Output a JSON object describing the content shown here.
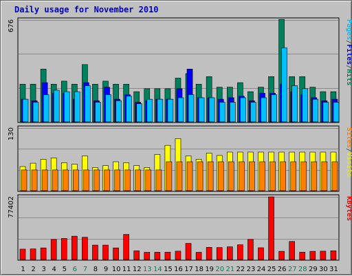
{
  "chart_data": {
    "title": "Daily usage for November 2010",
    "type": "bar",
    "categories": [
      "1",
      "2",
      "3",
      "4",
      "5",
      "6",
      "7",
      "8",
      "9",
      "10",
      "11",
      "12",
      "13",
      "14",
      "15",
      "16",
      "17",
      "18",
      "19",
      "20",
      "21",
      "22",
      "23",
      "24",
      "25",
      "26",
      "27",
      "28",
      "29",
      "30",
      "31"
    ],
    "weekend_days": [
      "6",
      "7",
      "13",
      "14",
      "20",
      "21",
      "27",
      "28"
    ],
    "panels": [
      {
        "id": "hits",
        "ymax_label": "676",
        "ymax": 676,
        "legend": [
          {
            "text": "Pages",
            "color": "#00c0ff"
          },
          {
            "text": "/",
            "color": "#505050"
          },
          {
            "text": "Files",
            "color": "#0000ff"
          },
          {
            "text": "/",
            "color": "#505050"
          },
          {
            "text": "Hits",
            "color": "#00805c"
          }
        ],
        "series": [
          {
            "name": "Hits",
            "color": "#00805c",
            "values": [
              250,
              250,
              350,
              250,
              270,
              250,
              380,
              250,
              270,
              250,
              250,
              200,
              220,
              220,
              220,
              290,
              320,
              250,
              300,
              230,
              230,
              260,
              200,
              230,
              300,
              680,
              300,
              300,
              230,
              200,
              200
            ]
          },
          {
            "name": "Files",
            "color": "#0000ff",
            "values": [
              150,
              140,
              260,
              190,
              190,
              150,
              260,
              140,
              230,
              150,
              180,
              130,
              140,
              150,
              150,
              220,
              350,
              160,
              160,
              150,
              160,
              170,
              140,
              190,
              190,
              250,
              200,
              180,
              160,
              140,
              150
            ]
          },
          {
            "name": "Pages",
            "color": "#00c0ff",
            "values": [
              150,
              130,
              180,
              210,
              200,
              200,
              240,
              130,
              180,
              140,
              170,
              120,
              150,
              150,
              150,
              160,
              180,
              160,
              160,
              130,
              130,
              160,
              130,
              160,
              180,
              490,
              240,
              220,
              150,
              130,
              130
            ]
          }
        ]
      },
      {
        "id": "sites",
        "ymax_label": "130",
        "ymax": 130,
        "legend": [
          {
            "text": "Sites",
            "color": "#ff8000"
          },
          {
            "text": "/",
            "color": "#505050"
          },
          {
            "text": "Visits",
            "color": "#e8e800"
          }
        ],
        "series": [
          {
            "name": "Visits",
            "color": "#ffff00",
            "values": [
              50,
              57,
              65,
              68,
              58,
              55,
              72,
              48,
              52,
              60,
              58,
              52,
              48,
              75,
              94,
              108,
              72,
              65,
              78,
              73,
              80,
              80,
              80,
              80,
              80,
              80,
              80,
              80,
              80,
              80,
              80
            ]
          },
          {
            "name": "Sites",
            "color": "#ff8000",
            "values": [
              43,
              43,
              43,
              43,
              43,
              43,
              43,
              43,
              43,
              43,
              43,
              43,
              43,
              43,
              60,
              60,
              60,
              60,
              60,
              60,
              60,
              60,
              60,
              60,
              60,
              60,
              60,
              60,
              60,
              60,
              60
            ]
          }
        ]
      },
      {
        "id": "kbytes",
        "ymax_label": "77402",
        "ymax": 77402,
        "legend": [
          {
            "text": "KBytes",
            "color": "#ff0000"
          }
        ],
        "series": [
          {
            "name": "KBytes",
            "color": "#ff0000",
            "values": [
              12800,
              13100,
              14300,
              24800,
              26000,
              28800,
              27500,
              17800,
              17800,
              14300,
              31000,
              10700,
              8900,
              9000,
              9000,
              10300,
              19900,
              8900,
              15000,
              14800,
              15700,
              18200,
              24800,
              14500,
              77400,
              10100,
              22300,
              9000,
              10100,
              10300,
              10800
            ]
          }
        ]
      }
    ],
    "grid": "horizontal"
  }
}
